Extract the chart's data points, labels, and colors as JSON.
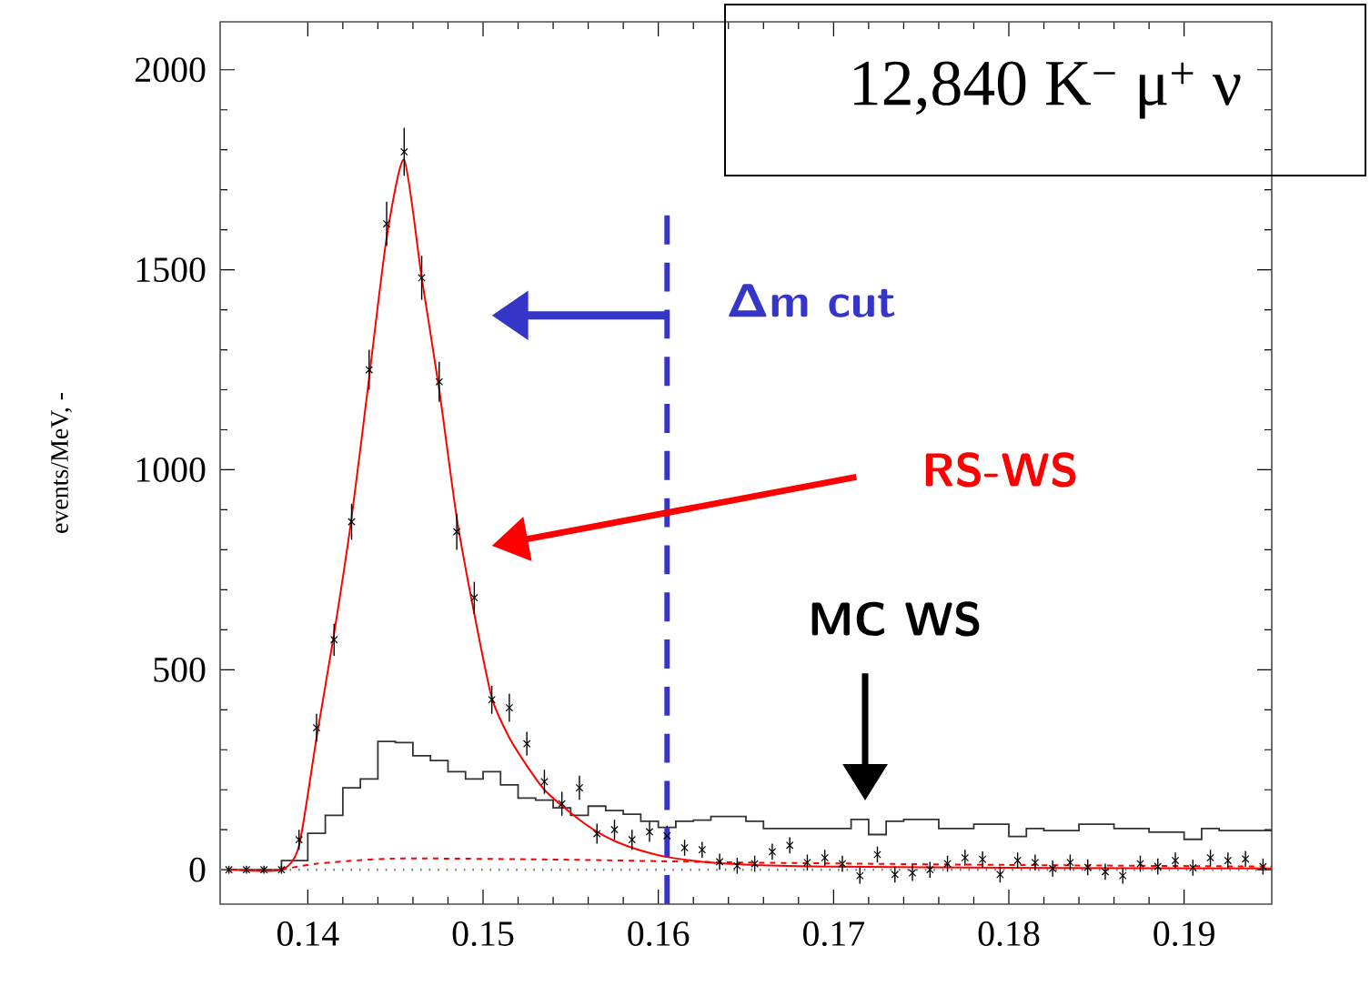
{
  "chart_data": {
    "type": "scatter",
    "title": "12,840 K$^{−}$ μ$^{+}$ ν",
    "ylabel": "events/MeV, -",
    "xlim": [
      0.135,
      0.195
    ],
    "ylim": [
      -86,
      2120
    ],
    "xticks": [
      0.14,
      0.15,
      0.16,
      0.17,
      0.18,
      0.19
    ],
    "yticks": [
      0,
      500,
      1000,
      1500,
      2000
    ],
    "grid": false,
    "series": [
      {
        "type": "step",
        "color": "#333333",
        "marker": "none",
        "line_style": "solid",
        "x": [
          0.1355,
          0.1385,
          0.14,
          0.141,
          0.142,
          0.143,
          0.144,
          0.145,
          0.146,
          0.147,
          0.148,
          0.149,
          0.15,
          0.151,
          0.152,
          0.153,
          0.154,
          0.155,
          0.156,
          0.157,
          0.158,
          0.159,
          0.16,
          0.161,
          0.162,
          0.163,
          0.164,
          0.165,
          0.166,
          0.167,
          0.168,
          0.169,
          0.17,
          0.171,
          0.172,
          0.173,
          0.174,
          0.175,
          0.176,
          0.177,
          0.178,
          0.179,
          0.18,
          0.181,
          0.182,
          0.183,
          0.184,
          0.185,
          0.186,
          0.187,
          0.188,
          0.189,
          0.19,
          0.191,
          0.192,
          0.193,
          0.194,
          0.195
        ],
        "values": [
          0,
          23,
          91,
          136,
          205,
          227,
          321,
          318,
          285,
          273,
          245,
          227,
          245,
          212,
          179,
          174,
          155,
          136,
          159,
          148,
          139,
          121,
          106,
          121,
          124,
          133,
          133,
          121,
          103,
          103,
          103,
          103,
          103,
          126,
          88,
          121,
          126,
          126,
          103,
          103,
          114,
          114,
          83,
          103,
          98,
          98,
          114,
          114,
          103,
          103,
          94,
          94,
          76,
          103,
          98,
          98,
          98,
          98
        ]
      },
      {
        "type": "line",
        "color": "#ff0000",
        "marker": "none",
        "line_style": "dashed",
        "x": [
          0.1385,
          0.1405,
          0.145,
          0.155,
          0.165,
          0.18,
          0.195
        ],
        "values": [
          0,
          15,
          28,
          25,
          18,
          12,
          8
        ]
      },
      {
        "type": "line",
        "color": "#ff0000",
        "marker": "none",
        "line_style": "solid",
        "x": [
          0.1355,
          0.1385,
          0.1395,
          0.1405,
          0.1415,
          0.1425,
          0.1435,
          0.1445,
          0.1455,
          0.1465,
          0.1475,
          0.1485,
          0.1495,
          0.1505,
          0.1515,
          0.1525,
          0.1535,
          0.1545,
          0.1555,
          0.1565,
          0.1575,
          0.1585,
          0.1595,
          0.1605,
          0.1625,
          0.1655,
          0.17,
          0.18,
          0.195
        ],
        "values": [
          0,
          0,
          60,
          330,
          590,
          880,
          1230,
          1580,
          1775,
          1480,
          1200,
          880,
          640,
          430,
          330,
          260,
          200,
          160,
          125,
          95,
          72,
          55,
          42,
          32,
          20,
          12,
          8,
          5,
          3
        ]
      },
      {
        "color": "#000000",
        "marker": "cross",
        "x": [
          0.1355,
          0.1365,
          0.1375,
          0.1385,
          0.1395,
          0.1405,
          0.1415,
          0.1425,
          0.1435,
          0.1445,
          0.1455,
          0.1465,
          0.1475,
          0.1485,
          0.1495,
          0.1505,
          0.1515,
          0.1525,
          0.1535,
          0.1545,
          0.1555,
          0.1565,
          0.1575,
          0.1585,
          0.1595,
          0.1605,
          0.1615,
          0.1625,
          0.1635,
          0.1645,
          0.1655,
          0.1665,
          0.1675,
          0.1685,
          0.1695,
          0.1705,
          0.1715,
          0.1725,
          0.1735,
          0.1745,
          0.1755,
          0.1765,
          0.1775,
          0.1785,
          0.1795,
          0.1805,
          0.1815,
          0.1825,
          0.1835,
          0.1845,
          0.1855,
          0.1865,
          0.1875,
          0.1885,
          0.1895,
          0.1905,
          0.1915,
          0.1925,
          0.1935,
          0.1945
        ],
        "values": [
          0,
          0,
          0,
          0,
          75,
          355,
          575,
          870,
          1250,
          1615,
          1795,
          1480,
          1220,
          845,
          680,
          425,
          405,
          315,
          220,
          165,
          205,
          90,
          100,
          75,
          95,
          85,
          55,
          50,
          20,
          10,
          15,
          45,
          61,
          18,
          30,
          15,
          -15,
          38,
          -12,
          -8,
          0,
          15,
          30,
          26,
          -12,
          23,
          18,
          3,
          18,
          6,
          -5,
          -15,
          15,
          8,
          23,
          5,
          30,
          23,
          27,
          8
        ],
        "errors": [
          10,
          10,
          10,
          10,
          25,
          35,
          40,
          45,
          50,
          55,
          60,
          55,
          50,
          45,
          40,
          35,
          35,
          30,
          30,
          30,
          30,
          25,
          25,
          25,
          25,
          25,
          20,
          20,
          20,
          20,
          20,
          20,
          20,
          20,
          20,
          20,
          20,
          20,
          20,
          20,
          20,
          20,
          20,
          20,
          20,
          20,
          20,
          20,
          20,
          20,
          20,
          20,
          20,
          20,
          20,
          20,
          20,
          20,
          20,
          20
        ]
      }
    ],
    "ref_lines": [
      {
        "axis": "y",
        "value": 0,
        "color": "#777777",
        "line_style": "dotted"
      },
      {
        "axis": "x",
        "value": 0.1605,
        "label": "Δm cut",
        "color": "#3535c8",
        "line_style": "dashed"
      }
    ],
    "annotations": [
      "RS-WS",
      "MC WS"
    ]
  }
}
